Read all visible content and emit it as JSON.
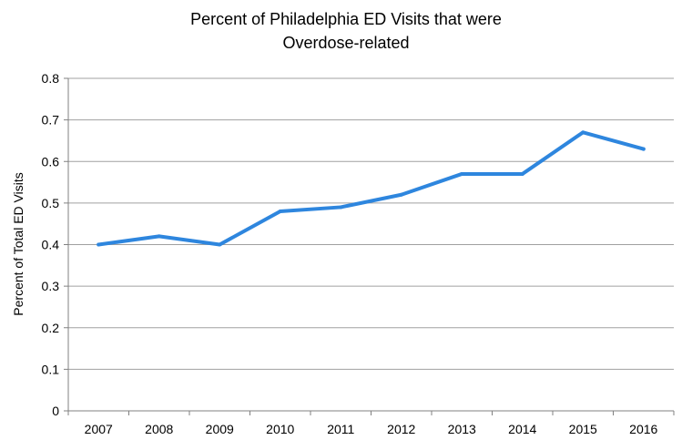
{
  "colors": {
    "series_line": "#2e86de",
    "gridline": "#a0a0a0",
    "axis": "#808080",
    "background": "#ffffff"
  },
  "chart_data": {
    "type": "line",
    "title_lines": [
      "Percent of Philadelphia  ED Visits that were",
      "Overdose-related"
    ],
    "xlabel": "",
    "ylabel": "Percent of Total  ED Visits",
    "categories": [
      "2007",
      "2008",
      "2009",
      "2010",
      "2011",
      "2012",
      "2013",
      "2014",
      "2015",
      "2016"
    ],
    "series": [
      {
        "values": [
          0.4,
          0.42,
          0.4,
          0.48,
          0.49,
          0.52,
          0.57,
          0.57,
          0.67,
          0.63
        ]
      }
    ],
    "ylim": [
      0,
      0.8
    ],
    "yticks": [
      "0",
      "0.1",
      "0.2",
      "0.3",
      "0.4",
      "0.5",
      "0.6",
      "0.7",
      "0.8"
    ],
    "grid": "horizontal",
    "legend": "none"
  }
}
